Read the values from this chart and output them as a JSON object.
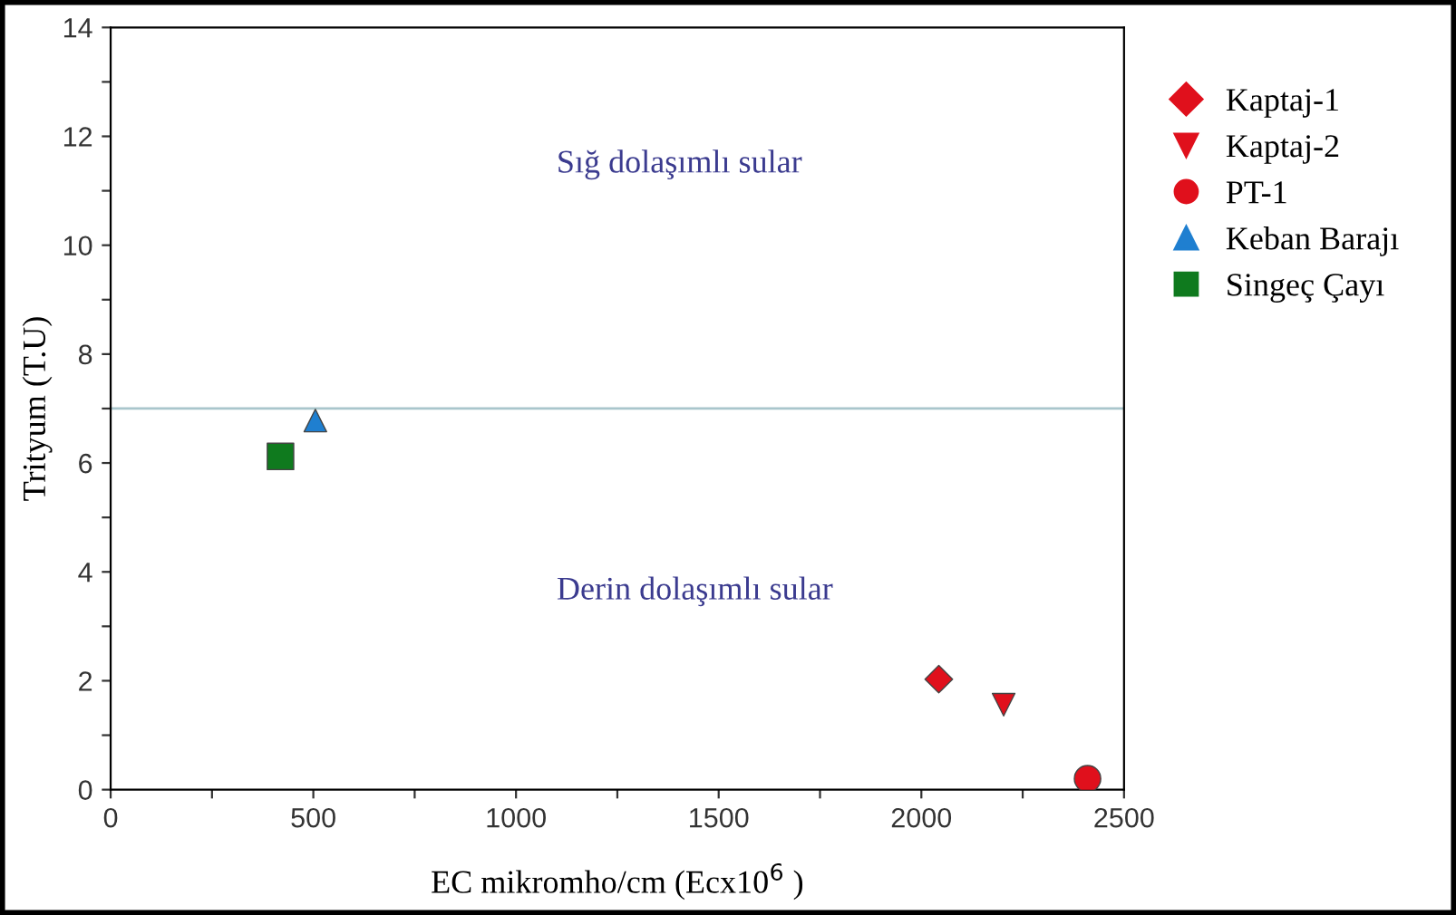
{
  "chart_data": {
    "type": "scatter",
    "xlabel": "EC mikromho/cm (Ecx10$^{6}$ )",
    "ylabel": "Trityum (T.U)",
    "xlim": [
      0,
      2500
    ],
    "ylim": [
      0,
      14
    ],
    "xticks": [
      0,
      {
        "value": 250,
        "label": null
      },
      500,
      {
        "value": 750,
        "label": null
      },
      1000,
      {
        "value": 1250,
        "label": null
      },
      1500,
      {
        "value": 1750,
        "label": null
      },
      2000,
      {
        "value": 2250,
        "label": null
      },
      2500
    ],
    "yticks": [
      0,
      {
        "value": 1,
        "label": null
      },
      2,
      {
        "value": 3,
        "label": null
      },
      4,
      {
        "value": 5,
        "label": null
      },
      6,
      {
        "value": 7,
        "label": null
      },
      8,
      {
        "value": 9,
        "label": null
      },
      10,
      {
        "value": 11,
        "label": null
      },
      12,
      {
        "value": 13,
        "label": null
      },
      14
    ],
    "grid": false,
    "legend": "right",
    "series": [
      {
        "name": "Kaptaj-1",
        "color": "#e0101c",
        "marker": "diamond",
        "x": [
          2043
        ],
        "values": [
          2.03
        ]
      },
      {
        "name": "Kaptaj-2",
        "color": "#e0101c",
        "marker": "triangle_down",
        "x": [
          2203
        ],
        "values": [
          1.56
        ]
      },
      {
        "name": "PT-1",
        "color": "#e0101c",
        "marker": "circle",
        "x": [
          2410
        ],
        "values": [
          0.2
        ]
      },
      {
        "name": "Keban Barajı",
        "color": "#1f7fd0",
        "marker": "triangle",
        "x": [
          505
        ],
        "values": [
          6.78
        ]
      },
      {
        "name": "Singeç Çayı",
        "color": "#0f7a1e",
        "marker": "square",
        "x": [
          419
        ],
        "values": [
          6.12
        ]
      }
    ],
    "ref_lines": [
      {
        "axis": "y",
        "value": 7,
        "color": "#a9c6cc"
      }
    ],
    "annotations": [
      "Sığ dolaşımlı sular",
      "Derin dolaşımlı sular"
    ]
  }
}
